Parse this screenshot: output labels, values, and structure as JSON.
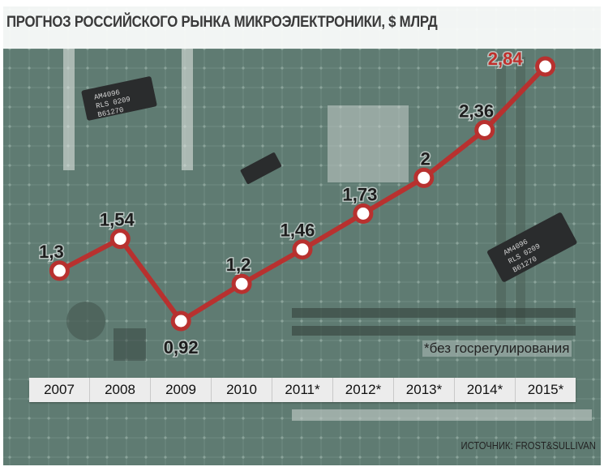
{
  "header": {
    "title": "ПРОГНОЗ РОССИЙСКОГО РЫНКА МИКРОЭЛЕКТРОНИКИ, $ МЛРД"
  },
  "footnote": "*без госрегулирования",
  "source": "ИСТОЧНИК: FROST&SULLIVAN",
  "colors": {
    "line": "#b8312f",
    "marker_fill": "#ffffff",
    "label": "#1e1e1e",
    "highlight_label": "#c0302c",
    "background": "#5f7b72"
  },
  "chart_data": {
    "type": "line",
    "title": "ПРОГНОЗ РОССИЙСКОГО РЫНКА МИКРОЭЛЕКТРОНИКИ, $ МЛРД",
    "xlabel": "",
    "ylabel": "",
    "categories": [
      "2007",
      "2008",
      "2009",
      "2010",
      "2011*",
      "2012*",
      "2013*",
      "2014*",
      "2015*"
    ],
    "series": [
      {
        "values": [
          1.3,
          1.54,
          0.92,
          1.2,
          1.46,
          1.73,
          2,
          2.36,
          2.84
        ],
        "labels": [
          "1,3",
          "1,54",
          "0,92",
          "1,2",
          "1,46",
          "1,73",
          "2",
          "2,36",
          "2,84"
        ]
      }
    ],
    "ylim": [
      0.92,
      2.84
    ],
    "grid": false,
    "legend": "none",
    "highlight_index": 8
  }
}
